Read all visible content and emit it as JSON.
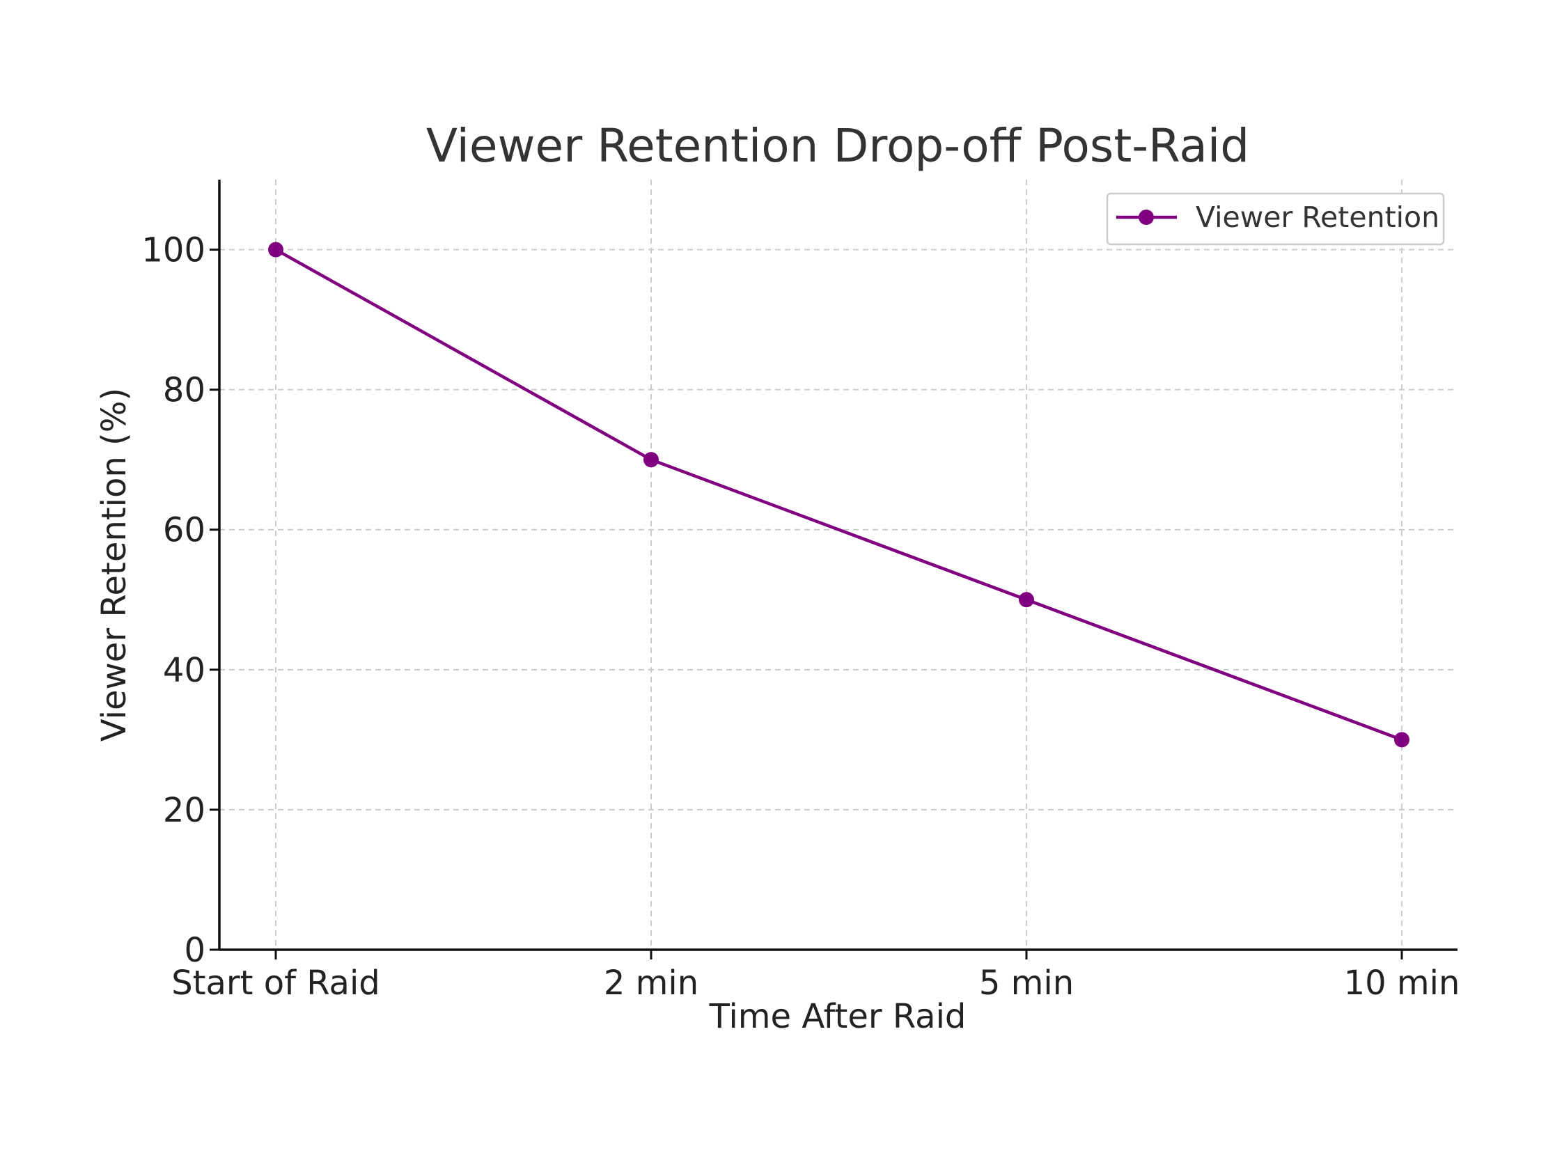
{
  "chart_data": {
    "type": "line",
    "title": "Viewer Retention Drop-off Post-Raid",
    "xlabel": "Time After Raid",
    "ylabel": "Viewer Retention (%)",
    "categories": [
      "Start of Raid",
      "2 min",
      "5 min",
      "10 min"
    ],
    "series": [
      {
        "name": "Viewer Retention",
        "values": [
          100,
          70,
          50,
          30
        ],
        "color": "#800080",
        "marker": "circle"
      }
    ],
    "ylim": [
      0,
      110
    ],
    "yticks": [
      0,
      20,
      40,
      60,
      80,
      100
    ],
    "grid": true,
    "legend": "top-right"
  }
}
